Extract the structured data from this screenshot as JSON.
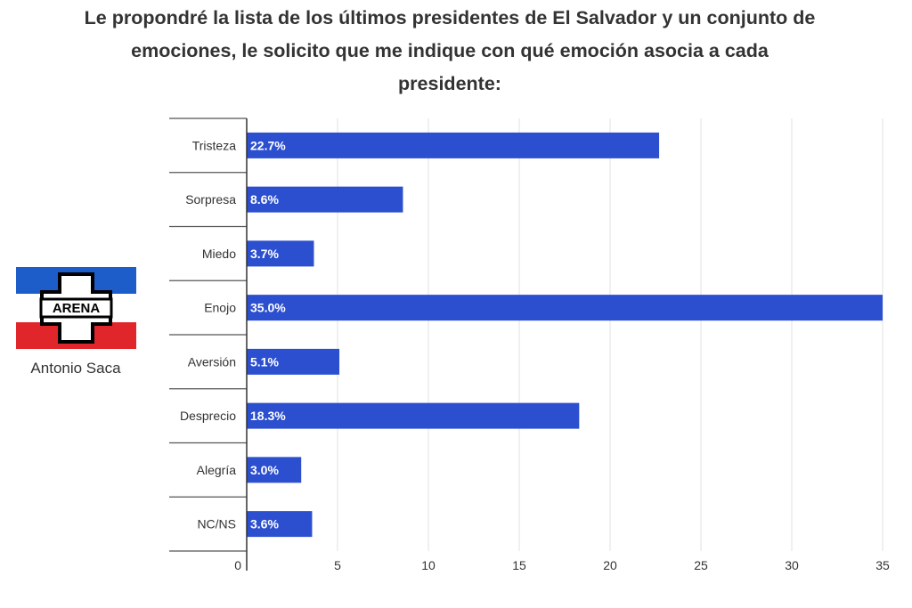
{
  "title_lines": [
    "Le propondré la lista de los últimos presidentes de El Salvador y un conjunto de",
    "emociones, le solicito que me indique con qué emoción asocia a cada",
    "presidente:"
  ],
  "president": {
    "name": "Antonio Saca",
    "logo_text": "ARENA",
    "logo_colors": {
      "top": "#1d5dc9",
      "bottom": "#e0262a",
      "cross": "#ffffff",
      "outline": "#000000"
    }
  },
  "chart_data": {
    "type": "bar",
    "orientation": "horizontal",
    "title": "",
    "xlabel": "",
    "ylabel": "",
    "categories": [
      "Tristeza",
      "Sorpresa",
      "Miedo",
      "Enojo",
      "Aversión",
      "Desprecio",
      "Alegría",
      "NC/NS"
    ],
    "values": [
      22.7,
      8.6,
      3.7,
      35.0,
      5.1,
      18.3,
      3.0,
      3.6
    ],
    "data_labels": [
      "22.7%",
      "8.6%",
      "3.7%",
      "35.0%",
      "5.1%",
      "18.3%",
      "3.0%",
      "3.6%"
    ],
    "xlim": [
      0,
      35
    ],
    "xticks": [
      0,
      5,
      10,
      15,
      20,
      25,
      30,
      35
    ],
    "grid": true,
    "bar_color": "#2c4fd0"
  }
}
